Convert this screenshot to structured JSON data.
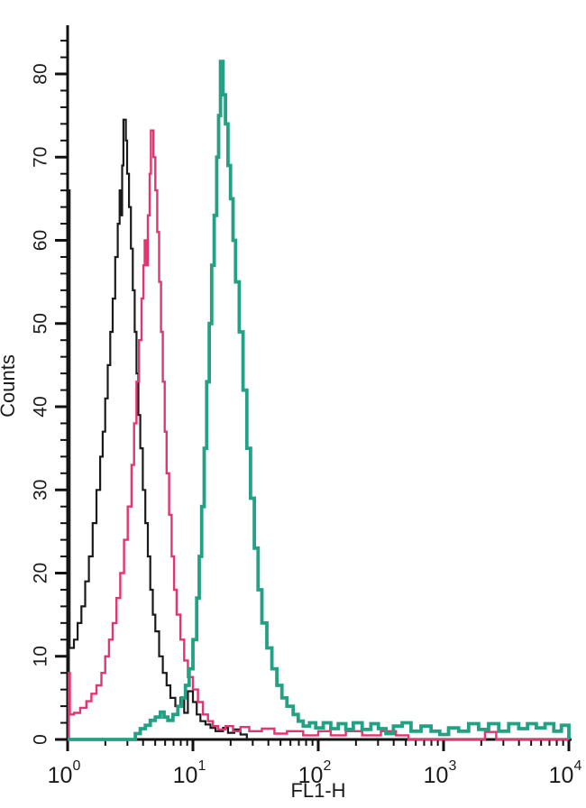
{
  "chart_data": {
    "type": "line",
    "subtype": "flow-cytometry-histogram-overlay",
    "title": "",
    "xlabel": "FL1-H",
    "ylabel": "Counts",
    "grid": false,
    "legend": null,
    "x_axis": {
      "scale": "log10",
      "min": 1,
      "max": 10000,
      "tick_base": "10",
      "tick_exponents": [
        "0",
        "1",
        "2",
        "3",
        "4"
      ]
    },
    "y_axis": {
      "min": 0,
      "max": 85,
      "major_step": 10,
      "minor_step": 2,
      "tick_labels": [
        "0",
        "10",
        "20",
        "30",
        "40",
        "50",
        "60",
        "70",
        "80"
      ]
    },
    "series": [
      {
        "name": "black-histogram",
        "color": "#1a1a1a",
        "line_width": 2.2,
        "points_logx_counts": [
          [
            0,
            0
          ],
          [
            0.01,
            66
          ],
          [
            0.016,
            11
          ],
          [
            0.05,
            12
          ],
          [
            0.08,
            14
          ],
          [
            0.11,
            16
          ],
          [
            0.14,
            19
          ],
          [
            0.17,
            22
          ],
          [
            0.2,
            26
          ],
          [
            0.23,
            30
          ],
          [
            0.26,
            34
          ],
          [
            0.28,
            37
          ],
          [
            0.3,
            41
          ],
          [
            0.32,
            45
          ],
          [
            0.34,
            49
          ],
          [
            0.36,
            53
          ],
          [
            0.38,
            58
          ],
          [
            0.4,
            62
          ],
          [
            0.415,
            66
          ],
          [
            0.425,
            63
          ],
          [
            0.435,
            69
          ],
          [
            0.445,
            74.5
          ],
          [
            0.465,
            72
          ],
          [
            0.475,
            68
          ],
          [
            0.49,
            64
          ],
          [
            0.505,
            59
          ],
          [
            0.52,
            54
          ],
          [
            0.535,
            49
          ],
          [
            0.55,
            44
          ],
          [
            0.565,
            39
          ],
          [
            0.58,
            35
          ],
          [
            0.6,
            30
          ],
          [
            0.62,
            26
          ],
          [
            0.64,
            22
          ],
          [
            0.66,
            18
          ],
          [
            0.68,
            15
          ],
          [
            0.7,
            13
          ],
          [
            0.73,
            10
          ],
          [
            0.76,
            8
          ],
          [
            0.79,
            6.5
          ],
          [
            0.82,
            5
          ],
          [
            0.86,
            4
          ],
          [
            0.9,
            5
          ],
          [
            0.93,
            3.2
          ],
          [
            0.96,
            5.8
          ],
          [
            1.0,
            4.5
          ],
          [
            1.03,
            3
          ],
          [
            1.06,
            2.2
          ],
          [
            1.1,
            1.8
          ],
          [
            1.14,
            1.4
          ],
          [
            1.18,
            1
          ],
          [
            1.24,
            1.4
          ],
          [
            1.28,
            0.8
          ],
          [
            1.33,
            1.2
          ],
          [
            1.38,
            0.6
          ],
          [
            1.43,
            0
          ]
        ]
      },
      {
        "name": "pink-histogram",
        "color": "#e3356f",
        "line_width": 2.4,
        "points_logx_counts": [
          [
            0,
            0
          ],
          [
            0.01,
            8
          ],
          [
            0.018,
            3
          ],
          [
            0.05,
            3.2
          ],
          [
            0.1,
            3.8
          ],
          [
            0.15,
            4.6
          ],
          [
            0.19,
            5.5
          ],
          [
            0.23,
            6.5
          ],
          [
            0.27,
            8
          ],
          [
            0.3,
            10
          ],
          [
            0.33,
            12
          ],
          [
            0.36,
            14
          ],
          [
            0.39,
            17
          ],
          [
            0.42,
            20
          ],
          [
            0.45,
            24
          ],
          [
            0.48,
            28
          ],
          [
            0.51,
            33
          ],
          [
            0.53,
            38
          ],
          [
            0.55,
            43
          ],
          [
            0.57,
            48
          ],
          [
            0.59,
            53
          ],
          [
            0.605,
            57
          ],
          [
            0.615,
            60
          ],
          [
            0.625,
            57
          ],
          [
            0.64,
            63
          ],
          [
            0.655,
            68
          ],
          [
            0.665,
            73.2
          ],
          [
            0.685,
            70
          ],
          [
            0.7,
            66
          ],
          [
            0.715,
            61
          ],
          [
            0.73,
            55
          ],
          [
            0.745,
            49
          ],
          [
            0.76,
            43
          ],
          [
            0.775,
            37
          ],
          [
            0.79,
            32
          ],
          [
            0.81,
            27
          ],
          [
            0.83,
            22
          ],
          [
            0.85,
            18
          ],
          [
            0.87,
            15
          ],
          [
            0.9,
            12
          ],
          [
            0.93,
            9.5
          ],
          [
            0.96,
            7.5
          ],
          [
            1.0,
            6
          ],
          [
            1.04,
            4.5
          ],
          [
            1.08,
            3
          ],
          [
            1.12,
            2.2
          ],
          [
            1.16,
            1.6
          ],
          [
            1.2,
            1.2
          ],
          [
            1.26,
            1.6
          ],
          [
            1.32,
            1
          ],
          [
            1.38,
            1.5
          ],
          [
            1.45,
            1
          ],
          [
            1.55,
            1.3
          ],
          [
            1.65,
            0.7
          ],
          [
            1.75,
            1
          ],
          [
            1.88,
            0.5
          ],
          [
            2.0,
            1
          ],
          [
            2.1,
            0.5
          ],
          [
            2.22,
            1
          ],
          [
            2.35,
            0.5
          ],
          [
            2.5,
            1
          ],
          [
            2.62,
            0.5
          ],
          [
            2.72,
            0
          ],
          [
            3.28,
            0
          ],
          [
            3.33,
            0.9
          ],
          [
            3.42,
            0
          ],
          [
            4,
            0
          ]
        ]
      },
      {
        "name": "green-histogram",
        "color": "#23a184",
        "line_width": 3.8,
        "points_logx_counts": [
          [
            0,
            0
          ],
          [
            0.5,
            0
          ],
          [
            0.54,
            0.7
          ],
          [
            0.58,
            1.3
          ],
          [
            0.62,
            1.7
          ],
          [
            0.66,
            2.3
          ],
          [
            0.7,
            2.7
          ],
          [
            0.74,
            3.3
          ],
          [
            0.77,
            2.7
          ],
          [
            0.8,
            2.3
          ],
          [
            0.84,
            3
          ],
          [
            0.88,
            4
          ],
          [
            0.91,
            5
          ],
          [
            0.94,
            6.5
          ],
          [
            0.97,
            8.5
          ],
          [
            1.0,
            12
          ],
          [
            1.03,
            17
          ],
          [
            1.05,
            22
          ],
          [
            1.07,
            28
          ],
          [
            1.09,
            35
          ],
          [
            1.11,
            43
          ],
          [
            1.13,
            50
          ],
          [
            1.15,
            57
          ],
          [
            1.17,
            63
          ],
          [
            1.19,
            70
          ],
          [
            1.205,
            75
          ],
          [
            1.22,
            81.5
          ],
          [
            1.24,
            77.5
          ],
          [
            1.26,
            74
          ],
          [
            1.28,
            69
          ],
          [
            1.3,
            65
          ],
          [
            1.32,
            60
          ],
          [
            1.34,
            55
          ],
          [
            1.37,
            49
          ],
          [
            1.4,
            42
          ],
          [
            1.43,
            35
          ],
          [
            1.46,
            29
          ],
          [
            1.49,
            23
          ],
          [
            1.52,
            18
          ],
          [
            1.55,
            14
          ],
          [
            1.59,
            11
          ],
          [
            1.63,
            8.5
          ],
          [
            1.67,
            6.5
          ],
          [
            1.71,
            5
          ],
          [
            1.75,
            4
          ],
          [
            1.8,
            3
          ],
          [
            1.84,
            2.2
          ],
          [
            1.88,
            1.6
          ],
          [
            1.93,
            2
          ],
          [
            1.98,
            1.4
          ],
          [
            2.04,
            2
          ],
          [
            2.1,
            1.3
          ],
          [
            2.16,
            1.9
          ],
          [
            2.22,
            1.2
          ],
          [
            2.28,
            2
          ],
          [
            2.35,
            1.2
          ],
          [
            2.42,
            1.9
          ],
          [
            2.48,
            1.3
          ],
          [
            2.54,
            0.7
          ],
          [
            2.6,
            1.6
          ],
          [
            2.67,
            2
          ],
          [
            2.74,
            1
          ],
          [
            2.82,
            1.6
          ],
          [
            2.9,
            1
          ],
          [
            2.97,
            0.6
          ],
          [
            3.04,
            1.4
          ],
          [
            3.12,
            1
          ],
          [
            3.2,
            1.9
          ],
          [
            3.28,
            1.2
          ],
          [
            3.36,
            1.9
          ],
          [
            3.44,
            1
          ],
          [
            3.52,
            1.9
          ],
          [
            3.6,
            1.3
          ],
          [
            3.67,
            1.9
          ],
          [
            3.74,
            1.4
          ],
          [
            3.81,
            1.9
          ],
          [
            3.88,
            1
          ],
          [
            3.94,
            1.7
          ],
          [
            4.0,
            0.8
          ],
          [
            4.0,
            0
          ]
        ]
      }
    ]
  }
}
